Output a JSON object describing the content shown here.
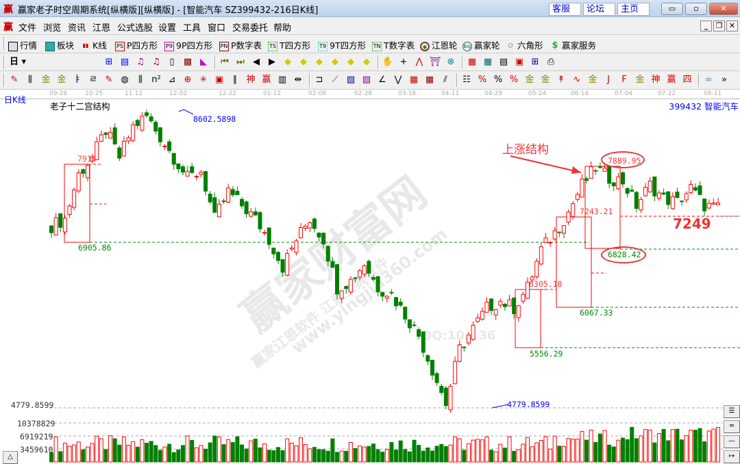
{
  "window": {
    "title": "赢家老子时空周期系统[纵横版][纵横版] - [智能汽车   SZ399432-216日K线]",
    "logo": "赢",
    "links": [
      "客服",
      "论坛",
      "主页"
    ],
    "controls": [
      "▭",
      "▫",
      "✕"
    ]
  },
  "menu": {
    "items": [
      "文件",
      "浏览",
      "资讯",
      "江恩",
      "公式选股",
      "设置",
      "工具",
      "窗口",
      "交易委托",
      "帮助"
    ]
  },
  "toolbar": {
    "items": [
      {
        "label": "行情",
        "icon": "calendar-grid"
      },
      {
        "label": "板块",
        "icon": "blocks"
      },
      {
        "label": "K线",
        "icon": "candles"
      },
      {
        "label": "P四方形",
        "icon": "PS"
      },
      {
        "label": "9P四方形",
        "icon": "P9"
      },
      {
        "label": "P数字表",
        "icon": "PN"
      },
      {
        "label": "T四方形",
        "icon": "TS"
      },
      {
        "label": "9T四方形",
        "icon": "T9"
      },
      {
        "label": "T数字表",
        "icon": "TN"
      },
      {
        "label": "江恩轮",
        "icon": "wheel"
      },
      {
        "label": "赢家轮",
        "icon": "Big"
      },
      {
        "label": "六角形",
        "icon": "hexagon"
      },
      {
        "label": "赢家服务",
        "icon": "dollar"
      }
    ]
  },
  "toolbar2": {
    "period": "日"
  },
  "chart": {
    "period_label": "日K线",
    "indicator": "老子十二宫结构",
    "code": "399432",
    "name": "智能汽车",
    "dates": [
      "09-28",
      "10-25",
      "11-12",
      "12-02",
      "12-22",
      "01-12",
      "02-08",
      "02-28",
      "03-18",
      "04-11",
      "04-29",
      "05-24",
      "06-14",
      "07-04",
      "07-22",
      "08-11"
    ],
    "price_labels": {
      "high": "8602.5898",
      "low": "4779.8599",
      "low_axis": "4779.8599",
      "l1": "7916",
      "l2": "6905.86",
      "l3": "6305.18",
      "l4": "5556.29",
      "l5": "7243.21",
      "l6": "6067.33",
      "l7": "7889.95",
      "l8": "6828.42",
      "current": "7249"
    },
    "annotation": "上涨结构",
    "volume_ticks": [
      "10378829",
      "6919219",
      "3459610"
    ],
    "closes": [
      7166,
      7256,
      7840,
      8064,
      8423,
      8064,
      8468,
      8603,
      8333,
      8064,
      7795,
      7885,
      7256,
      7615,
      7436,
      7256,
      6987,
      6628,
      6987,
      7256,
      6987,
      6358,
      6448,
      6673,
      6358,
      6269,
      6000,
      5730,
      5281,
      4833,
      5551,
      5820,
      6089,
      6179,
      6089,
      6358,
      6852,
      7077,
      7346,
      7705,
      7929,
      7795,
      7750,
      7436,
      7705,
      7525,
      7480,
      7660,
      7436,
      7391
    ],
    "colors": {
      "up": "#ff0000",
      "down": "#008000",
      "label_high": "#0000ff"
    }
  },
  "watermark": {
    "main": "赢家财富网",
    "url": "www.yingjia360.com",
    "soft": "赢家江恩软件 江恩工具软件",
    "qq": "QQ:10...36"
  }
}
